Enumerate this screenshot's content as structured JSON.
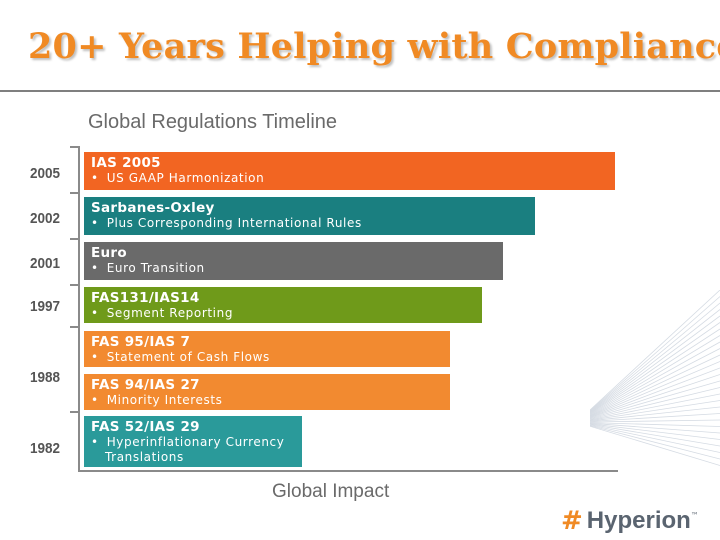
{
  "slide": {
    "title": "20+ Years Helping with Compliance"
  },
  "chart_data": {
    "type": "bar",
    "title": "Global Regulations Timeline",
    "xlabel": "Global Impact",
    "ylabel": "",
    "orientation": "horizontal",
    "year_labels": [
      "2005",
      "2002",
      "2001",
      "1997",
      "1988",
      "1982"
    ],
    "bars": [
      {
        "name": "IAS 2005",
        "sub_lines": [
          "US GAAP Harmonization"
        ],
        "impact": 100,
        "color": "#f26522"
      },
      {
        "name": "Sarbanes-Oxley",
        "sub_lines": [
          "Plus Corresponding International Rules"
        ],
        "impact": 85,
        "color": "#1a7f80"
      },
      {
        "name": "Euro",
        "sub_lines": [
          "Euro Transition"
        ],
        "impact": 79,
        "color": "#6a6a6a"
      },
      {
        "name": "FAS131/IAS14",
        "sub_lines": [
          "Segment Reporting"
        ],
        "impact": 75,
        "color": "#6f9a1a"
      },
      {
        "name": "FAS 95/IAS 7",
        "sub_lines": [
          "Statement of Cash Flows"
        ],
        "impact": 69,
        "color": "#f28a30"
      },
      {
        "name": "FAS 94/IAS 27",
        "sub_lines": [
          "Minority Interests"
        ],
        "impact": 69,
        "color": "#f28a30"
      },
      {
        "name": "FAS 52/IAS 29",
        "sub_lines": [
          "Hyperinflationary Currency",
          "Translations"
        ],
        "impact": 41,
        "color": "#2a9a9a"
      }
    ]
  },
  "logo": {
    "mark": "#",
    "text": "Hyperion",
    "tm": "™"
  },
  "bullet_glyph": "•"
}
